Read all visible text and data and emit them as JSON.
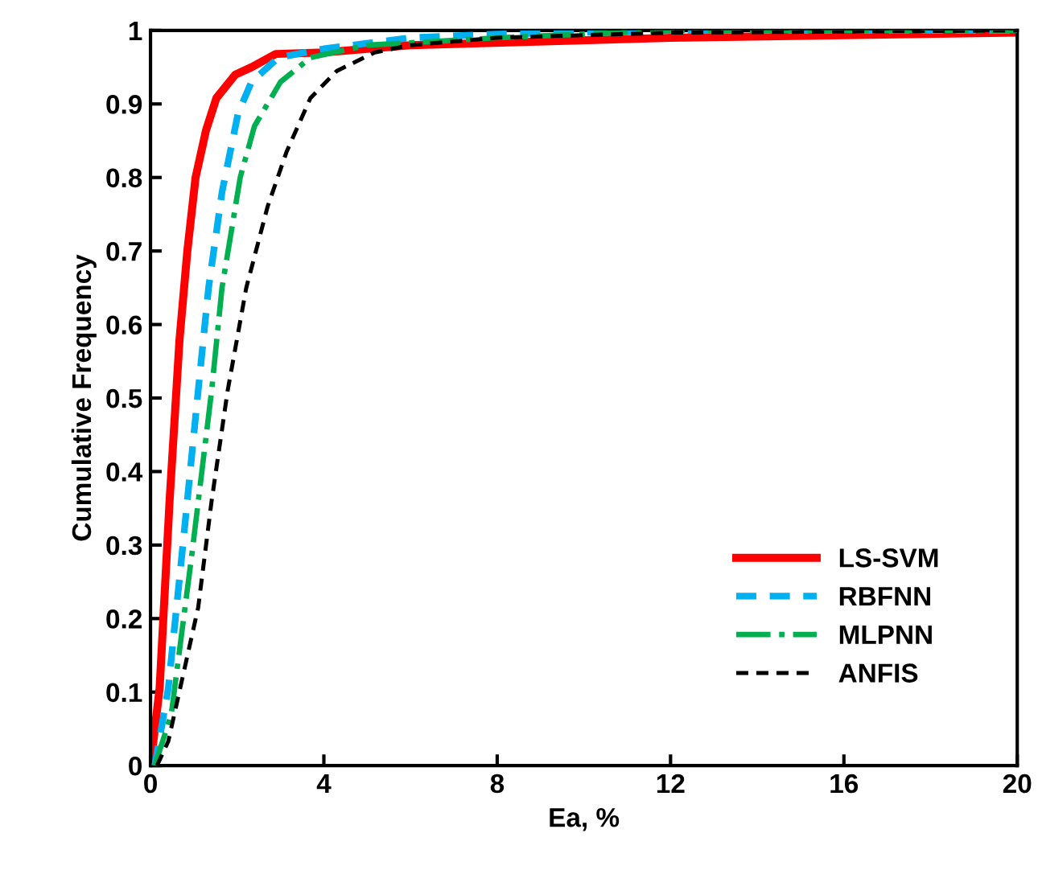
{
  "chart_data": {
    "type": "line",
    "xlabel": "Ea, %",
    "ylabel": "Cumulative Frequency",
    "xlim": [
      0,
      20
    ],
    "ylim": [
      0,
      1
    ],
    "xticks": [
      0,
      4,
      8,
      12,
      16,
      20
    ],
    "yticks": [
      0,
      {
        "value": 0.1,
        "label": "0.1"
      },
      {
        "value": 0.2,
        "label": "0.2"
      },
      {
        "value": 0.3,
        "label": "0.3"
      },
      {
        "value": 0.4,
        "label": "0.4"
      },
      {
        "value": 0.5,
        "label": "0.5"
      },
      {
        "value": 0.6,
        "label": "0.6"
      },
      {
        "value": 0.7,
        "label": "0.7"
      },
      {
        "value": 0.8,
        "label": "0.8"
      },
      {
        "value": 0.9,
        "label": "0.9"
      },
      1
    ],
    "grid": false,
    "legend": "bottom right",
    "marker": "none",
    "series": [
      {
        "name": "LS-SVM",
        "color": "#ff0000",
        "line_style": "solid",
        "x": [
          0,
          0.21,
          0.44,
          0.67,
          0.85,
          1.04,
          1.28,
          1.52,
          1.96,
          2.33,
          2.89,
          4,
          6,
          12,
          20
        ],
        "values": [
          0,
          0.105,
          0.36,
          0.58,
          0.7,
          0.8,
          0.864,
          0.908,
          0.94,
          0.95,
          0.968,
          0.97,
          0.98,
          0.99,
          0.997
        ]
      },
      {
        "name": "RBFNN",
        "color": "#00b0f0",
        "line_style": "dashed",
        "x": [
          0.1,
          0.41,
          0.73,
          1.1,
          1.34,
          1.65,
          2.02,
          2.33,
          2.95,
          4,
          6,
          8,
          12,
          20
        ],
        "values": [
          0,
          0.105,
          0.29,
          0.51,
          0.65,
          0.78,
          0.887,
          0.93,
          0.963,
          0.975,
          0.99,
          0.995,
          1,
          1
        ]
      },
      {
        "name": "MLPNN",
        "color": "#00b050",
        "line_style": "dashdot",
        "x": [
          0.1,
          0.48,
          0.96,
          1.41,
          1.65,
          2.07,
          2.4,
          3.0,
          3.69,
          5,
          8,
          12,
          20
        ],
        "values": [
          0,
          0.07,
          0.29,
          0.51,
          0.65,
          0.8,
          0.87,
          0.93,
          0.963,
          0.98,
          0.99,
          1,
          1
        ]
      },
      {
        "name": "ANFIS",
        "color": "#000000",
        "line_style": "dashed",
        "x": [
          0.15,
          0.41,
          1.1,
          1.41,
          1.78,
          2.21,
          2.7,
          3.14,
          3.69,
          4.3,
          5.17,
          6,
          8,
          12,
          20
        ],
        "values": [
          0,
          0.033,
          0.215,
          0.36,
          0.51,
          0.65,
          0.76,
          0.835,
          0.908,
          0.945,
          0.97,
          0.98,
          0.99,
          0.997,
          1
        ]
      }
    ]
  }
}
